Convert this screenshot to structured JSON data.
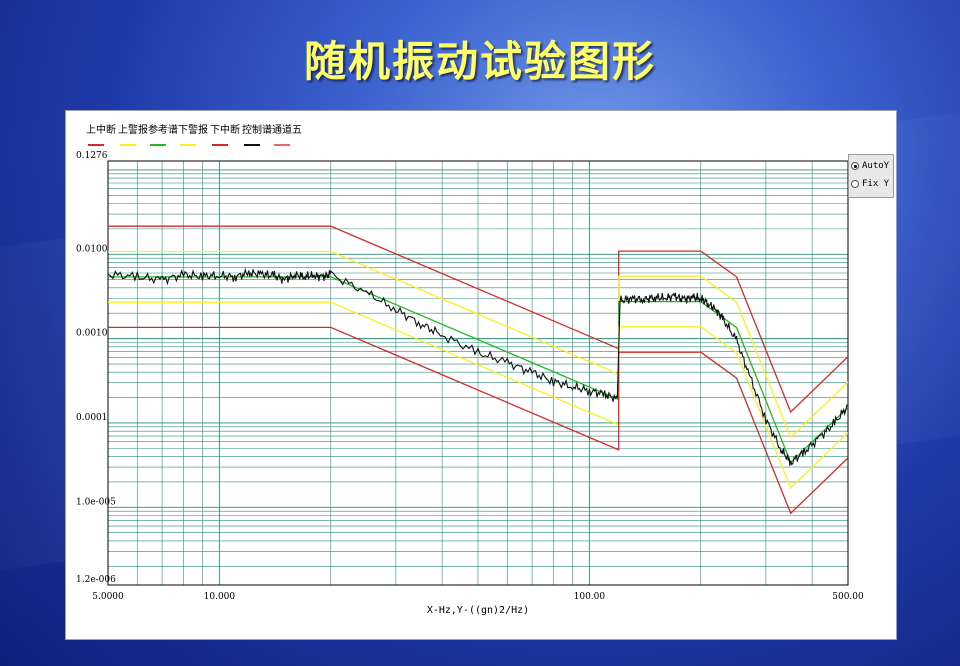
{
  "slide": {
    "title": "随机振动试验图形"
  },
  "legend": [
    {
      "label": "上中断",
      "color": "#d42a2a"
    },
    {
      "label": "上警报",
      "color": "#ffee22"
    },
    {
      "label": "参考谱",
      "color": "#22b822"
    },
    {
      "label": "下警报",
      "color": "#ffee22"
    },
    {
      "label": "下中断",
      "color": "#d42a2a"
    },
    {
      "label": "控制谱",
      "color": "#111111"
    },
    {
      "label": "通道五",
      "color": "#e06a6a"
    }
  ],
  "controls": {
    "auto_label": "AutoY",
    "fix_label": "Fix Y",
    "selected": "AutoY"
  },
  "chart_data": {
    "type": "line",
    "title": "",
    "xlabel": "X-Hz,Y-((gn)2/Hz)",
    "ylabel": "",
    "x_scale": "log",
    "y_scale": "log",
    "xlim": [
      5,
      500
    ],
    "ylim": [
      1.2e-06,
      0.1276
    ],
    "x_tick_labels": [
      {
        "value": 5,
        "label": "5.0000"
      },
      {
        "value": 10,
        "label": "10.000"
      },
      {
        "value": 100,
        "label": "100.00"
      },
      {
        "value": 500,
        "label": "500.00"
      }
    ],
    "y_tick_labels": [
      {
        "value": 0.1276,
        "label": "0.1276"
      },
      {
        "value": 0.01,
        "label": "0.0100"
      },
      {
        "value": 0.001,
        "label": "0.0010"
      },
      {
        "value": 0.0001,
        "label": "0.0001"
      },
      {
        "value": 1e-05,
        "label": "1.0e-005"
      },
      {
        "value": 1.2e-06,
        "label": "1.2e-006"
      }
    ],
    "grid": true,
    "legend_position": "top-left",
    "series": [
      {
        "name": "上中断",
        "color": "#d42a2a",
        "x": [
          5,
          20,
          120,
          120,
          200,
          250,
          350,
          500
        ],
        "y": [
          0.0215,
          0.0215,
          0.00076,
          0.0109,
          0.0109,
          0.0054,
          0.000135,
          0.00061
        ]
      },
      {
        "name": "上警报",
        "color": "#ffee22",
        "x": [
          5,
          20,
          120,
          120,
          200,
          250,
          350,
          500
        ],
        "y": [
          0.0108,
          0.0108,
          0.00038,
          0.0055,
          0.0055,
          0.0027,
          6.75e-05,
          0.000305
        ]
      },
      {
        "name": "参考谱",
        "color": "#22b822",
        "x": [
          5,
          20,
          120,
          120,
          200,
          250,
          350,
          500
        ],
        "y": [
          0.0054,
          0.0054,
          0.00019,
          0.00275,
          0.00275,
          0.00135,
          3.4e-05,
          0.000153
        ]
      },
      {
        "name": "下警报",
        "color": "#ffee22",
        "x": [
          5,
          20,
          120,
          120,
          200,
          250,
          350,
          500
        ],
        "y": [
          0.0027,
          0.0027,
          9.5e-05,
          0.00138,
          0.00138,
          0.00068,
          1.7e-05,
          7.65e-05
        ]
      },
      {
        "name": "下中断",
        "color": "#d42a2a",
        "x": [
          5,
          20,
          120,
          120,
          200,
          250,
          350,
          500
        ],
        "y": [
          0.00136,
          0.00136,
          4.8e-05,
          0.00069,
          0.00069,
          0.00034,
          8.5e-06,
          3.85e-05
        ]
      },
      {
        "name": "控制谱",
        "color": "#111111",
        "x": [
          5,
          6,
          7,
          8,
          9,
          10,
          11,
          12,
          13,
          14,
          15,
          16,
          17,
          18,
          19,
          20,
          25,
          30,
          35,
          40,
          50,
          60,
          70,
          80,
          90,
          100,
          110,
          119,
          121,
          130,
          140,
          150,
          160,
          170,
          180,
          190,
          200,
          210,
          220,
          230,
          250,
          270,
          300,
          330,
          350,
          380,
          420,
          460,
          500
        ],
        "y": [
          0.0058,
          0.0054,
          0.005,
          0.0057,
          0.0055,
          0.0056,
          0.0054,
          0.006,
          0.0058,
          0.0056,
          0.005,
          0.0057,
          0.0055,
          0.0056,
          0.0054,
          0.0058,
          0.0035,
          0.0022,
          0.0015,
          0.0011,
          0.00068,
          0.00052,
          0.0004,
          0.00031,
          0.00027,
          0.00024,
          0.00022,
          0.00019,
          0.0028,
          0.003,
          0.0029,
          0.0031,
          0.003,
          0.0032,
          0.0029,
          0.0031,
          0.003,
          0.0026,
          0.0022,
          0.0017,
          0.00095,
          0.00038,
          0.00011,
          4.8e-05,
          3.4e-05,
          4.5e-05,
          6.8e-05,
          0.0001,
          0.00016
        ]
      }
    ]
  }
}
